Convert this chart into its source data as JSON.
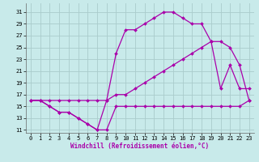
{
  "background_color": "#c8eaea",
  "grid_color": "#aacccc",
  "line_color": "#aa00aa",
  "figsize": [
    3.2,
    2.0
  ],
  "dpi": 100,
  "xlim": [
    -0.5,
    23.5
  ],
  "ylim": [
    10.5,
    32.5
  ],
  "yticks": [
    11,
    13,
    15,
    17,
    19,
    21,
    23,
    25,
    27,
    29,
    31
  ],
  "xticks": [
    0,
    1,
    2,
    3,
    4,
    5,
    6,
    7,
    8,
    9,
    10,
    11,
    12,
    13,
    14,
    15,
    16,
    17,
    18,
    19,
    20,
    21,
    22,
    23
  ],
  "xlabel": "Windchill (Refroidissement éolien,°C)",
  "xlabel_fontsize": 5.5,
  "tick_fontsize": 5,
  "series1_x": [
    0,
    1,
    2,
    3,
    4,
    5,
    6,
    7,
    8,
    9,
    10,
    11,
    12,
    13,
    14,
    15,
    16,
    17,
    18,
    19,
    20,
    21,
    22,
    23
  ],
  "series1_y": [
    16,
    16,
    15,
    14,
    14,
    13,
    12,
    11,
    11,
    15,
    15,
    15,
    15,
    15,
    15,
    15,
    15,
    15,
    15,
    15,
    15,
    15,
    15,
    16
  ],
  "series2_x": [
    0,
    1,
    2,
    3,
    4,
    5,
    6,
    7,
    8,
    9,
    10,
    11,
    12,
    13,
    14,
    15,
    16,
    17,
    18,
    19,
    20,
    21,
    22,
    23
  ],
  "series2_y": [
    16,
    16,
    16,
    16,
    16,
    16,
    16,
    16,
    16,
    17,
    17,
    18,
    19,
    20,
    21,
    22,
    23,
    24,
    25,
    26,
    26,
    25,
    22,
    16
  ],
  "series3_x": [
    0,
    1,
    2,
    3,
    4,
    5,
    6,
    7,
    8,
    9,
    10,
    11,
    12,
    13,
    14,
    15,
    16,
    17,
    18,
    19,
    20,
    21,
    22,
    23
  ],
  "series3_y": [
    16,
    16,
    15,
    14,
    14,
    13,
    12,
    11,
    16,
    24,
    28,
    28,
    29,
    30,
    31,
    31,
    30,
    29,
    29,
    26,
    18,
    22,
    18,
    18
  ]
}
